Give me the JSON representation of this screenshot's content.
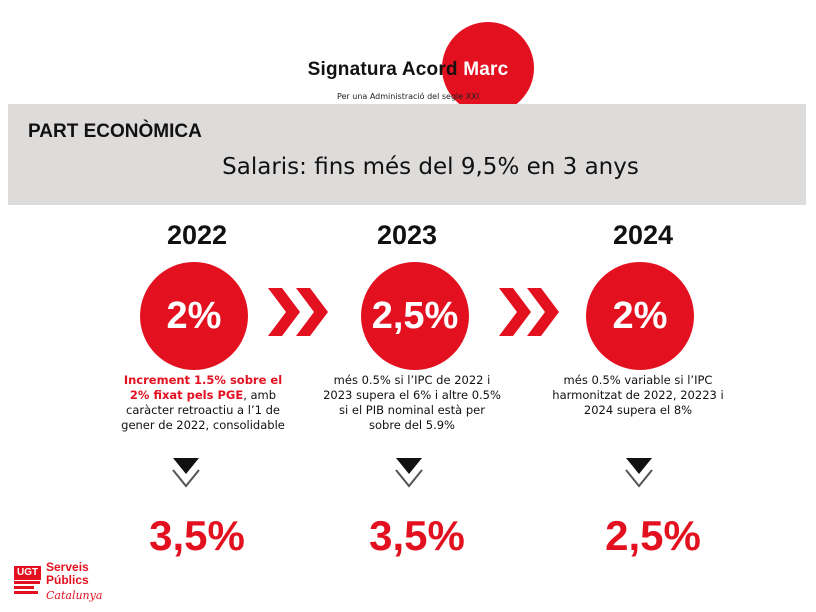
{
  "header": {
    "title_main": "Signatura Acord",
    "title_accent": "Marc",
    "subtitle": "Per una Administració del segle XXI"
  },
  "band": {
    "section_label": "PART ECONÒMICA",
    "headline": "Salaris: fins més del 9,5% en 3 anys"
  },
  "columns": [
    {
      "year": "2022",
      "percent": "2%",
      "desc_highlight": "Increment 1.5% sobre el 2% fixat pels PGE",
      "desc_text": ", amb caràcter retroactiu a l’1 de gener de 2022, consolidable",
      "result": "3,5%"
    },
    {
      "year": "2023",
      "percent": "2,5%",
      "desc_highlight": "",
      "desc_text": "més 0.5% si l’IPC de 2022 i 2023 supera el 6% i altre 0.5% si el PIB nominal està per sobre del 5.9%",
      "result": "3,5%"
    },
    {
      "year": "2024",
      "percent": "2%",
      "desc_highlight": "",
      "desc_text": "més 0.5% variable si l’IPC harmonitzat de 2022, 20223 i 2024 supera el 8%",
      "result": "2,5%"
    }
  ],
  "logo": {
    "badge": "UGT",
    "line1": "Serveis",
    "line2": "Públics",
    "line3": "Catalunya"
  },
  "colors": {
    "accent": "#e3101f",
    "band": "#dedcdb"
  },
  "icons": {
    "forward": "double-chevron-right-icon",
    "down": "double-chevron-down-icon"
  }
}
